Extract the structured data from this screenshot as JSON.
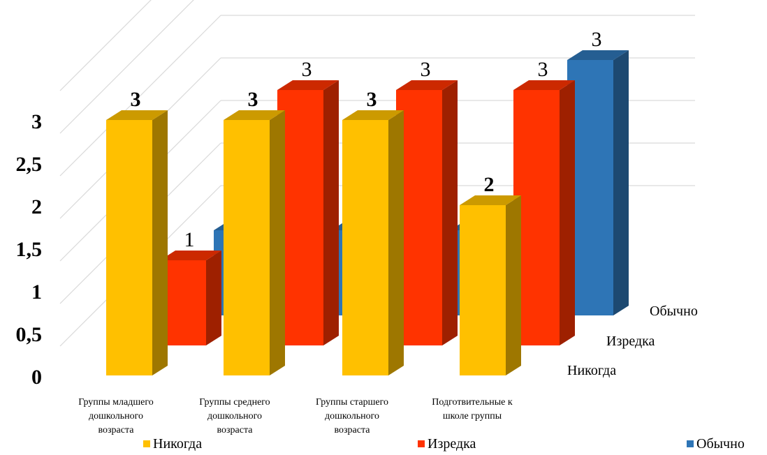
{
  "chart_data": {
    "type": "bar",
    "categories": [
      [
        "Группы младшего",
        "дошкольного",
        "возраста"
      ],
      [
        "Группы среднего",
        "дошкольного",
        "возраста"
      ],
      [
        "Группы старшего",
        "дошкольного",
        "возраста"
      ],
      [
        "Подготвительные к",
        "школе группы"
      ]
    ],
    "series": [
      {
        "name": "Никогда",
        "values": [
          3,
          3,
          3,
          2
        ],
        "color": "#FFC000"
      },
      {
        "name": "Изредка",
        "values": [
          1,
          3,
          3,
          3
        ],
        "color": "#FF3300"
      },
      {
        "name": "Обычно",
        "values": [
          1,
          1,
          1,
          3
        ],
        "color": "#2E75B6"
      }
    ],
    "y_ticks": [
      "0",
      "0,5",
      "1",
      "1,5",
      "2",
      "2,5",
      "3"
    ],
    "ylim": [
      0,
      3
    ],
    "grid": true,
    "legend": "bottom",
    "style": "3d-column"
  }
}
